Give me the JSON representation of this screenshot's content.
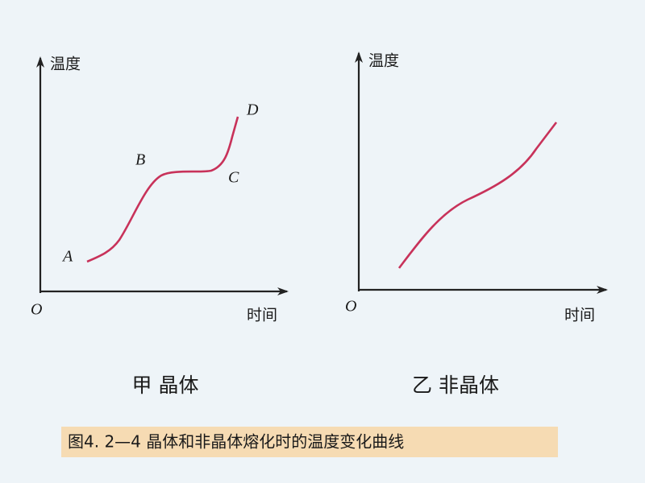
{
  "panels": [
    {
      "y_label": "温度",
      "x_label": "时间",
      "origin": "O",
      "points": [
        "A",
        "B",
        "C",
        "D"
      ],
      "caption": "甲 晶体"
    },
    {
      "y_label": "温度",
      "x_label": "时间",
      "origin": "O",
      "caption": "乙 非晶体"
    }
  ],
  "figure_caption": "图4. 2—4 晶体和非晶体熔化时的温度变化曲线"
}
